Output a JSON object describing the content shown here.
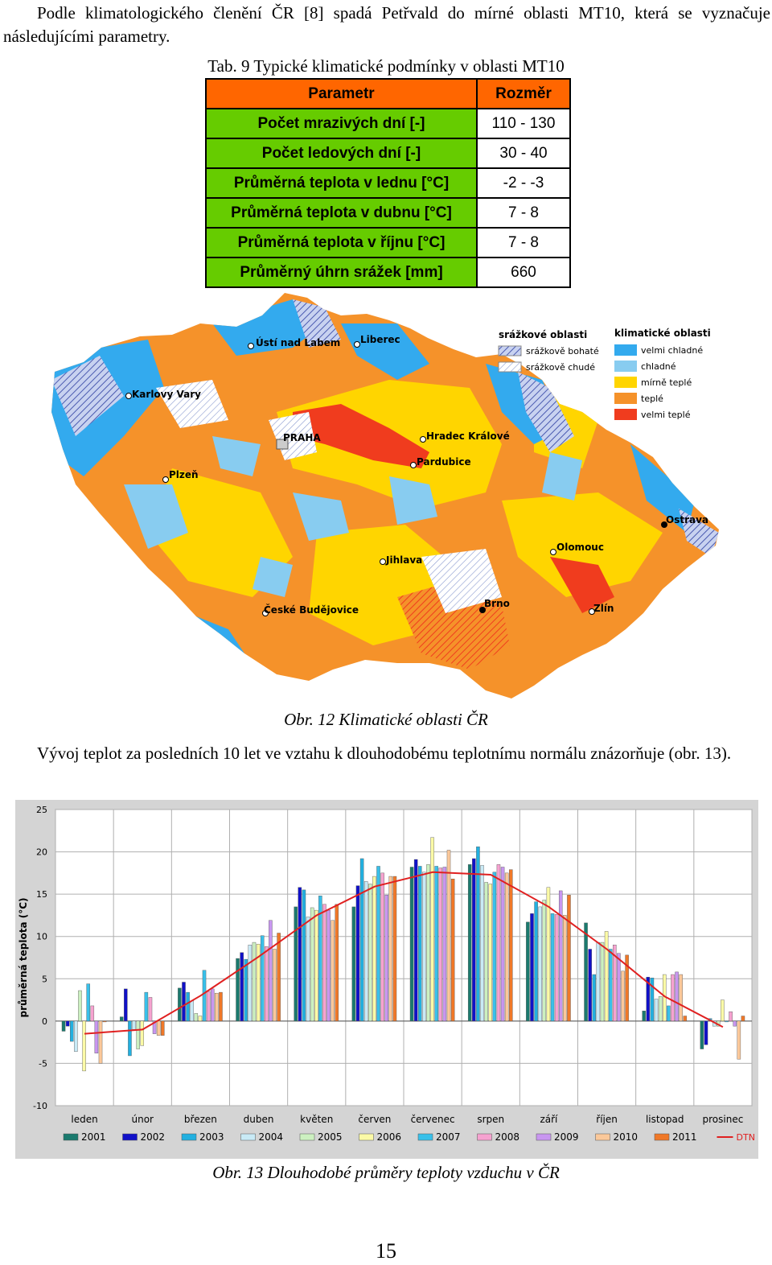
{
  "paragraph1": "Podle klimatologického členění ČR [8] spadá Petřvald do mírné oblasti MT10, která se vyznačuje následujícími parametry.",
  "table_caption": "Tab. 9 Typické klimatické podmínky v oblasti MT10",
  "table": {
    "headers": [
      "Parametr",
      "Rozměr"
    ],
    "rows": [
      {
        "param": "Počet mrazivých dní [-]",
        "value": "110 - 130"
      },
      {
        "param": "Počet ledových dní [-]",
        "value": "30 - 40"
      },
      {
        "param": "Průměrná teplota v lednu  [°C]",
        "value": "-2 - -3"
      },
      {
        "param": "Průměrná teplota v dubnu  [°C]",
        "value": "7 - 8"
      },
      {
        "param": "Průměrná teplota v říjnu  [°C]",
        "value": "7 - 8"
      },
      {
        "param": "Průměrný úhrn srážek [mm]",
        "value": "660"
      }
    ]
  },
  "map": {
    "cities": [
      "Ústí nad Labem",
      "Liberec",
      "Karlovy Vary",
      "PRAHA",
      "Hradec Králové",
      "Pardubice",
      "Plzeň",
      "Ostrava",
      "Olomouc",
      "Jihlava",
      "České Budějovice",
      "Brno",
      "Zlín"
    ],
    "legend_precip_title": "srážkové oblasti",
    "legend_precip": [
      "srážkově bohaté",
      "srážkově chudé"
    ],
    "legend_climate_title": "klimatické oblasti",
    "legend_climate": [
      {
        "label": "velmi chladné",
        "color": "#33aaee"
      },
      {
        "label": "chladné",
        "color": "#88ccf0"
      },
      {
        "label": "mírně teplé",
        "color": "#ffd500"
      },
      {
        "label": "teplé",
        "color": "#f5922a"
      },
      {
        "label": "velmi teplé",
        "color": "#f03c1e"
      }
    ]
  },
  "fig12_caption": "Obr. 12 Klimatické oblasti ČR",
  "paragraph2": "Vývoj teplot za posledních 10 let ve vztahu k dlouhodobému teplotnímu normálu znázorňuje (obr. 13).",
  "chart_data": {
    "type": "bar",
    "ylabel": "průměrná teplota (°C)",
    "ylim": [
      -10,
      25
    ],
    "yticks": [
      25,
      20,
      15,
      10,
      5,
      0,
      -5,
      -10
    ],
    "categories": [
      "leden",
      "únor",
      "březen",
      "duben",
      "květen",
      "červen",
      "červenec",
      "srpen",
      "září",
      "říjen",
      "listopad",
      "prosinec"
    ],
    "series": [
      {
        "name": "2001",
        "color": "#1a7a6e",
        "values": [
          -1.2,
          0.5,
          3.9,
          7.4,
          13.5,
          13.5,
          18.2,
          18.5,
          11.7,
          11.6,
          1.2,
          -3.3
        ]
      },
      {
        "name": "2002",
        "color": "#1010c8",
        "values": [
          -0.6,
          3.8,
          4.6,
          8.1,
          15.8,
          16.0,
          19.1,
          19.2,
          12.7,
          8.5,
          5.2,
          -2.8
        ]
      },
      {
        "name": "2003",
        "color": "#22b0e0",
        "values": [
          -2.4,
          -4.1,
          3.4,
          7.3,
          15.5,
          19.2,
          18.3,
          20.6,
          14.1,
          5.5,
          5.1,
          0.3
        ]
      },
      {
        "name": "2004",
        "color": "#c8eaf6",
        "values": [
          -3.6,
          -1.0,
          2.4,
          9.0,
          12.3,
          16.5,
          17.6,
          18.4,
          13.5,
          9.3,
          2.6,
          -0.6
        ]
      },
      {
        "name": "2005",
        "color": "#ccf0c0",
        "values": [
          3.6,
          -3.3,
          0.9,
          9.3,
          13.4,
          16.2,
          18.5,
          16.4,
          14.3,
          9.3,
          2.9,
          -0.6
        ]
      },
      {
        "name": "2006",
        "color": "#fbfaa6",
        "values": [
          -5.9,
          -2.9,
          0.6,
          9.1,
          13.1,
          17.1,
          21.7,
          16.2,
          15.8,
          10.6,
          5.5,
          2.5
        ]
      },
      {
        "name": "2007",
        "color": "#38c0ea",
        "values": [
          4.4,
          3.4,
          6.0,
          10.1,
          14.8,
          18.3,
          18.3,
          17.6,
          12.7,
          8.5,
          1.8,
          -0.1
        ]
      },
      {
        "name": "2008",
        "color": "#f6a2d0",
        "values": [
          1.8,
          2.8,
          3.5,
          8.8,
          13.8,
          17.5,
          18.1,
          18.5,
          12.6,
          9.0,
          5.5,
          1.1
        ]
      },
      {
        "name": "2009",
        "color": "#c896f0",
        "values": [
          -3.8,
          -1.5,
          3.8,
          11.9,
          13.1,
          14.9,
          18.2,
          18.2,
          15.4,
          8.0,
          5.8,
          -0.6
        ]
      },
      {
        "name": "2010",
        "color": "#fbc89a",
        "values": [
          -5.0,
          -1.7,
          3.3,
          8.5,
          11.9,
          17.1,
          20.2,
          17.5,
          12.5,
          5.9,
          5.5,
          -4.5
        ]
      },
      {
        "name": "2011",
        "color": "#f07828",
        "values": [
          -0.1,
          -1.7,
          3.4,
          10.4,
          13.8,
          17.1,
          16.8,
          17.9,
          14.9,
          7.8,
          0.6,
          0.6
        ]
      }
    ],
    "line": {
      "name": "DTN",
      "color": "#e02020",
      "values": [
        -1.5,
        -1.0,
        3.0,
        7.6,
        12.5,
        15.9,
        17.6,
        17.3,
        13.5,
        8.5,
        2.9,
        -0.7
      ]
    },
    "legend_position": "bottom"
  },
  "fig13_caption": "Obr. 13 Dlouhodobé průměry teploty vzduchu v ČR",
  "page_number": "15"
}
